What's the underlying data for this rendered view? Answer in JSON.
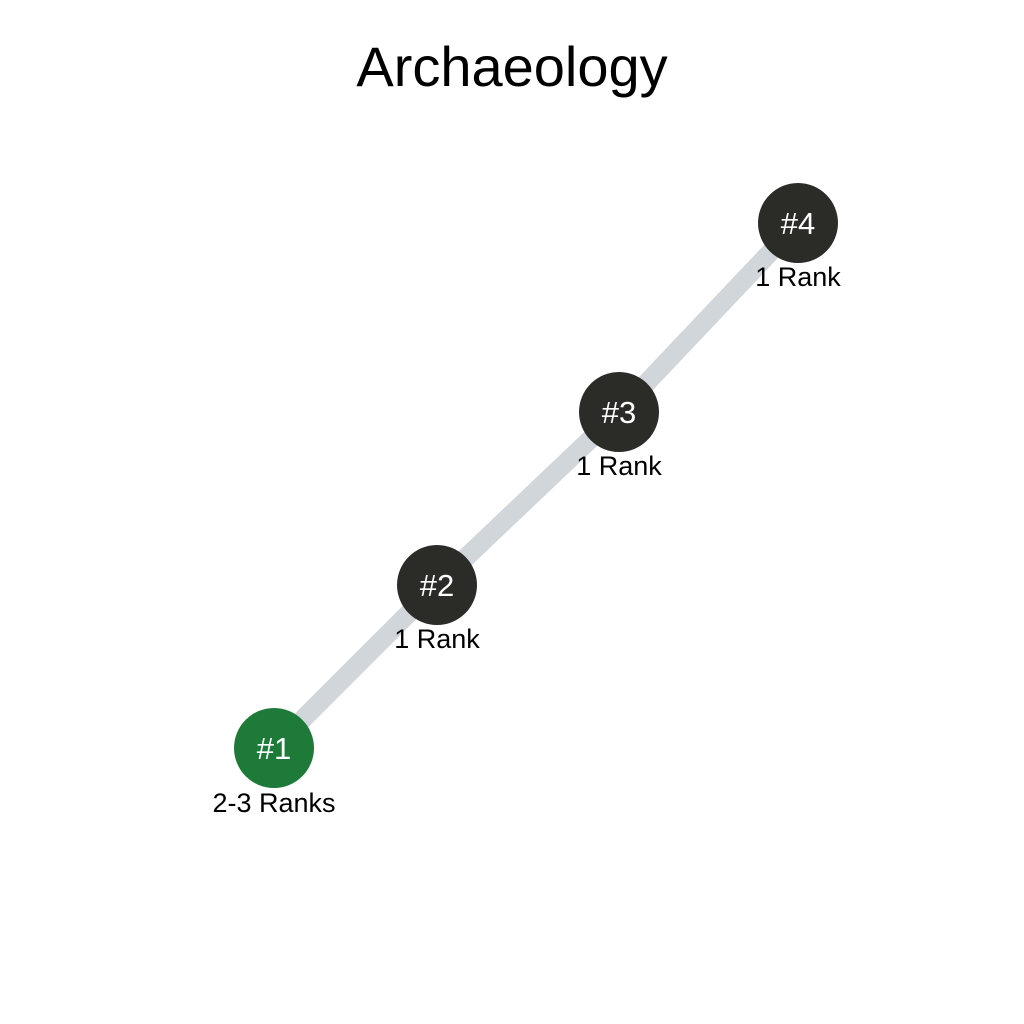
{
  "title": "Archaeology",
  "colors": {
    "connector": "#d1d6da",
    "node_default": "#2b2b28",
    "node_active": "#1e7a38",
    "node_text": "#ffffff",
    "rank_text": "#000000"
  },
  "nodes": [
    {
      "label": "#1",
      "ranks": "2-3 Ranks",
      "active": true
    },
    {
      "label": "#2",
      "ranks": "1 Rank",
      "active": false
    },
    {
      "label": "#3",
      "ranks": "1 Rank",
      "active": false
    },
    {
      "label": "#4",
      "ranks": "1 Rank",
      "active": false
    }
  ]
}
